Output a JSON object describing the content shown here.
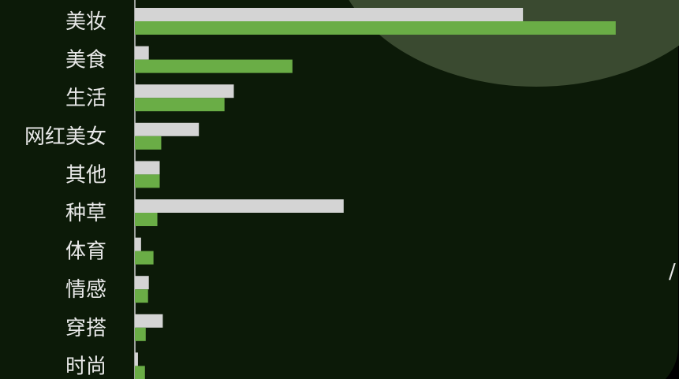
{
  "chart_data": {
    "type": "bar",
    "orientation": "horizontal",
    "categories": [
      "美妆",
      "美食",
      "生活",
      "网红美女",
      "其他",
      "种草",
      "体育",
      "情感",
      "穿搭",
      "时尚"
    ],
    "series": [
      {
        "values": [
          100,
          3.6,
          25.5,
          16.5,
          6.4,
          53.8,
          1.6,
          3.6,
          7.2,
          0.8
        ],
        "color": "#d4d4d4"
      },
      {
        "values": [
          123.9,
          40.6,
          23.1,
          6.8,
          6.4,
          5.8,
          4.8,
          3.4,
          2.8,
          2.6
        ],
        "color": "#6aad46"
      }
    ],
    "xlim": [
      0,
      140
    ],
    "grid": false,
    "legend": "none"
  },
  "edge_text": "/"
}
